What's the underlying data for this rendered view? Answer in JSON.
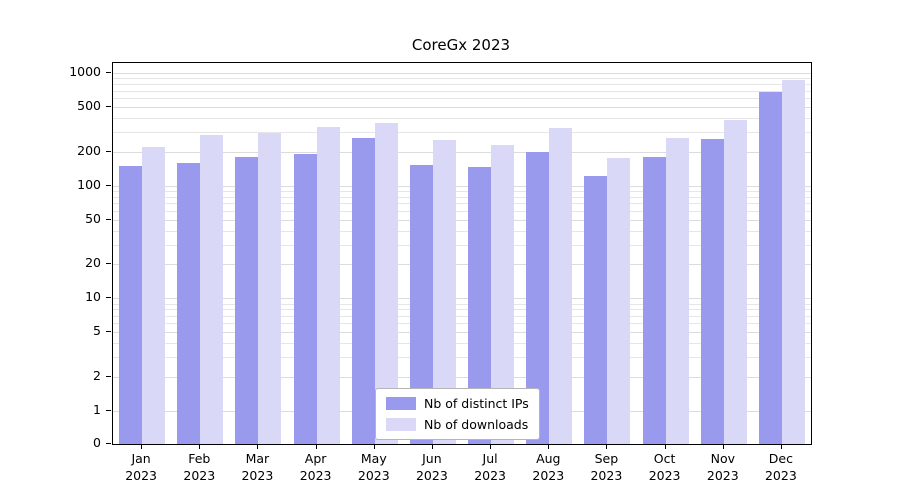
{
  "title": "CoreGx 2023",
  "chart_data": {
    "type": "bar",
    "title": "CoreGx 2023",
    "categories": [
      "Jan",
      "Feb",
      "Mar",
      "Apr",
      "May",
      "Jun",
      "Jul",
      "Aug",
      "Sep",
      "Oct",
      "Nov",
      "Dec"
    ],
    "year": "2023",
    "series": [
      {
        "name": "Nb of distinct IPs",
        "color": "#9999ee",
        "values": [
          150,
          160,
          180,
          190,
          265,
          152,
          148,
          200,
          122,
          180,
          260,
          680
        ]
      },
      {
        "name": "Nb of downloads",
        "color": "#d9d9f7",
        "values": [
          220,
          280,
          295,
          335,
          360,
          252,
          228,
          325,
          175,
          265,
          385,
          860
        ]
      }
    ],
    "yscale": "symlog",
    "yticks": [
      0,
      1,
      2,
      5,
      10,
      20,
      50,
      100,
      200,
      500,
      1000
    ],
    "ylim": [
      0,
      1100
    ],
    "xlabel": "",
    "ylabel": "",
    "grid": true,
    "grid_color": "#e6e6e6",
    "grid_major_color": "#dcdcdc",
    "legend_position": "lower center"
  }
}
